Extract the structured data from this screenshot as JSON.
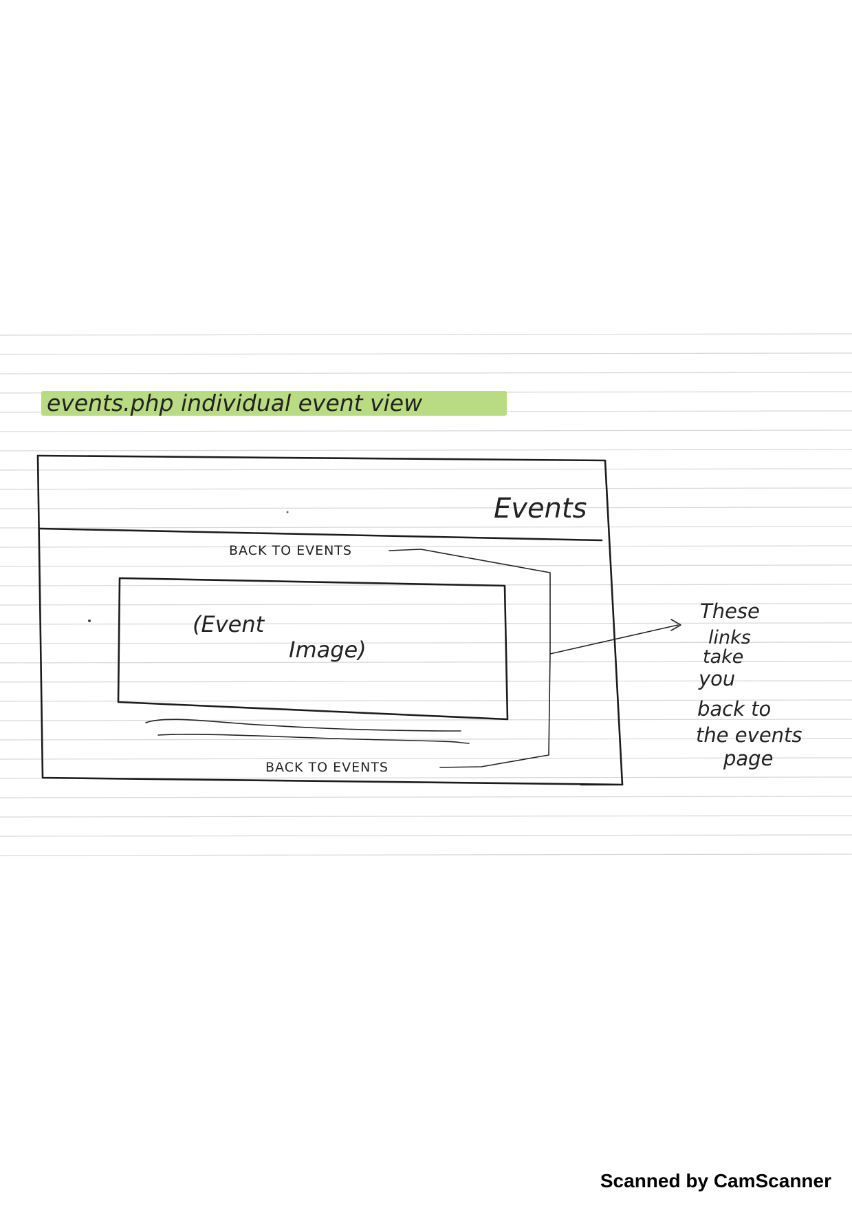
{
  "page_title": "events.php individual event view",
  "highlight_color": "#b5d97a",
  "header": {
    "nav_label": "Events"
  },
  "content": {
    "top_link": "BACK TO EVENTS",
    "image_placeholder_line1": "(Event",
    "image_placeholder_line2": "Image)",
    "bottom_link": "BACK TO EVENTS"
  },
  "annotation": {
    "lines": [
      "These",
      "links",
      "take",
      "you",
      "back to",
      "the events",
      "page"
    ]
  },
  "watermark": "Scanned by CamScanner"
}
